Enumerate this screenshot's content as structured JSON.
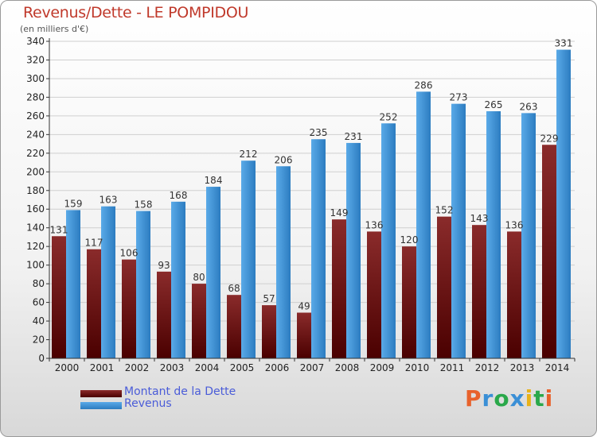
{
  "header": {
    "title": "Revenus/Dette - LE POMPIDOU",
    "subtitle": "(en milliers d'€)"
  },
  "legend": {
    "debt_label": "Montant de la Dette",
    "revenue_label": "Revenus"
  },
  "brand": {
    "name": "Proxiti",
    "colors": [
      "#e8622c",
      "#3a8fd6",
      "#2aa84a",
      "#3a8fd6",
      "#e8b21a",
      "#2aa84a",
      "#e8622c"
    ]
  },
  "colors": {
    "debt_top": "#8a2b2b",
    "debt_bottom": "#4a0000",
    "revenue_top": "#5aaae8",
    "revenue_bottom": "#2c7cc0",
    "title": "#c0392b",
    "legend_text": "#4a5cd8"
  },
  "chart_data": {
    "type": "bar",
    "title": "Revenus/Dette - LE POMPIDOU",
    "ylabel": "(en milliers d'€)",
    "xlabel": "",
    "ylim": [
      0,
      340
    ],
    "yticks": [
      0,
      20,
      40,
      60,
      80,
      100,
      120,
      140,
      160,
      180,
      200,
      220,
      240,
      260,
      280,
      300,
      320,
      340
    ],
    "grid": true,
    "legend_position": "bottom-left",
    "categories": [
      "2000",
      "2001",
      "2002",
      "2003",
      "2004",
      "2005",
      "2006",
      "2007",
      "2008",
      "2009",
      "2010",
      "2011",
      "2012",
      "2013",
      "2014"
    ],
    "series": [
      {
        "name": "Montant de la Dette",
        "values": [
          131,
          117,
          106,
          93,
          80,
          68,
          57,
          49,
          149,
          136,
          120,
          152,
          143,
          136,
          229
        ]
      },
      {
        "name": "Revenus",
        "values": [
          159,
          163,
          158,
          168,
          184,
          212,
          206,
          235,
          231,
          252,
          286,
          273,
          265,
          263,
          331
        ]
      }
    ]
  }
}
